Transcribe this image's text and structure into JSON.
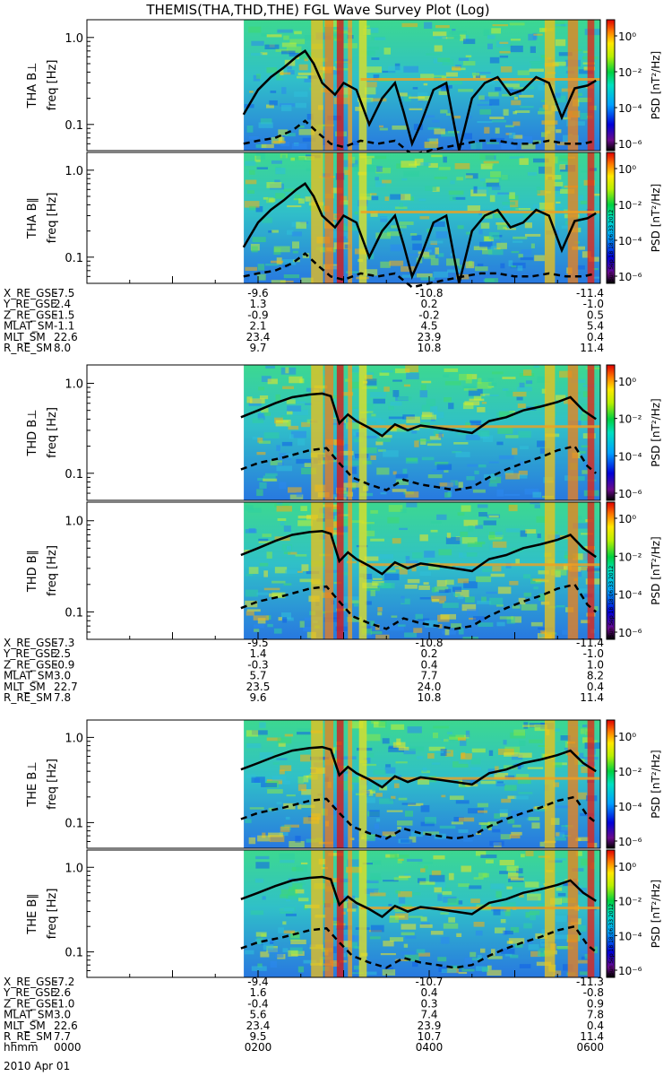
{
  "title": "THEMIS(THA,THD,THE) FGL Wave Survey Plot (Log)",
  "stamp": "Sun Sep 18 18:06:33 2012",
  "date_label": "2010 Apr 01",
  "colorbar": {
    "label": "PSD [nT²/Hz]",
    "ticks": [
      "10⁰",
      "10⁻²",
      "10⁻⁴",
      "10⁻⁶"
    ],
    "tick_values": [
      1,
      0.01,
      0.0001,
      1e-06
    ]
  },
  "freq_ticks": [
    "1.0",
    "0.1"
  ],
  "chart_data": [
    {
      "type": "heatmap",
      "probe": "THA",
      "panel_label": "THA B⊥",
      "ylabel": "freq [Hz]",
      "y_scale": "log",
      "ylim": [
        0.05,
        1.6
      ],
      "xlim": [
        "00:00",
        "06:00"
      ],
      "data_start": "01:50",
      "overlays": [
        {
          "style": "solid",
          "x": [
            1.83,
            1.9,
            2.0,
            2.15,
            2.3,
            2.45,
            2.55,
            2.65,
            2.75,
            2.9,
            3.0,
            3.15,
            3.3,
            3.45,
            3.6,
            3.7,
            3.8,
            3.9,
            4.05,
            4.2,
            4.35,
            4.5,
            4.65,
            4.8,
            4.95,
            5.1,
            5.25,
            5.4,
            5.55,
            5.7,
            5.85,
            5.95
          ],
          "y": [
            0.13,
            0.17,
            0.25,
            0.35,
            0.45,
            0.6,
            0.7,
            0.5,
            0.3,
            0.22,
            0.3,
            0.25,
            0.1,
            0.2,
            0.3,
            0.14,
            0.06,
            0.1,
            0.25,
            0.3,
            0.05,
            0.2,
            0.3,
            0.35,
            0.22,
            0.25,
            0.35,
            0.3,
            0.12,
            0.26,
            0.28,
            0.32
          ]
        },
        {
          "style": "dashed",
          "x": [
            1.83,
            2.0,
            2.2,
            2.4,
            2.55,
            2.7,
            2.85,
            3.0,
            3.2,
            3.4,
            3.6,
            3.8,
            4.0,
            4.2,
            4.4,
            4.6,
            4.8,
            5.0,
            5.2,
            5.4,
            5.6,
            5.8,
            5.95
          ],
          "y": [
            0.06,
            0.065,
            0.07,
            0.085,
            0.11,
            0.08,
            0.06,
            0.055,
            0.065,
            0.06,
            0.065,
            0.045,
            0.05,
            0.055,
            0.06,
            0.065,
            0.065,
            0.06,
            0.06,
            0.065,
            0.06,
            0.06,
            0.065
          ]
        }
      ]
    },
    {
      "type": "heatmap",
      "probe": "THA",
      "panel_label": "THA B∥",
      "ylabel": "freq [Hz]",
      "y_scale": "log",
      "ylim": [
        0.05,
        1.6
      ],
      "xlim": [
        "00:00",
        "06:00"
      ],
      "data_start": "01:50",
      "overlays": [
        {
          "style": "solid",
          "x": [
            1.83,
            1.9,
            2.0,
            2.15,
            2.3,
            2.45,
            2.55,
            2.65,
            2.75,
            2.9,
            3.0,
            3.15,
            3.3,
            3.45,
            3.6,
            3.7,
            3.8,
            3.9,
            4.05,
            4.2,
            4.35,
            4.5,
            4.65,
            4.8,
            4.95,
            5.1,
            5.25,
            5.4,
            5.55,
            5.7,
            5.85,
            5.95
          ],
          "y": [
            0.13,
            0.17,
            0.25,
            0.35,
            0.45,
            0.6,
            0.7,
            0.5,
            0.3,
            0.22,
            0.3,
            0.25,
            0.1,
            0.2,
            0.3,
            0.14,
            0.06,
            0.1,
            0.25,
            0.3,
            0.05,
            0.2,
            0.3,
            0.35,
            0.22,
            0.25,
            0.35,
            0.3,
            0.12,
            0.26,
            0.28,
            0.32
          ]
        },
        {
          "style": "dashed",
          "x": [
            1.83,
            2.0,
            2.2,
            2.4,
            2.55,
            2.7,
            2.85,
            3.0,
            3.2,
            3.4,
            3.6,
            3.8,
            4.0,
            4.2,
            4.4,
            4.6,
            4.8,
            5.0,
            5.2,
            5.4,
            5.6,
            5.8,
            5.95
          ],
          "y": [
            0.06,
            0.065,
            0.07,
            0.085,
            0.11,
            0.08,
            0.06,
            0.055,
            0.065,
            0.06,
            0.065,
            0.045,
            0.05,
            0.055,
            0.06,
            0.065,
            0.065,
            0.06,
            0.06,
            0.065,
            0.06,
            0.06,
            0.065
          ]
        }
      ]
    },
    {
      "type": "heatmap",
      "probe": "THD",
      "panel_label": "THD B⊥",
      "ylabel": "freq [Hz]",
      "y_scale": "log",
      "ylim": [
        0.05,
        1.6
      ],
      "xlim": [
        "00:00",
        "06:00"
      ],
      "data_start": "01:50",
      "overlays": [
        {
          "style": "solid",
          "x": [
            1.8,
            2.0,
            2.2,
            2.4,
            2.6,
            2.75,
            2.85,
            2.95,
            3.05,
            3.15,
            3.3,
            3.45,
            3.6,
            3.75,
            3.9,
            4.1,
            4.3,
            4.5,
            4.7,
            4.9,
            5.1,
            5.3,
            5.5,
            5.65,
            5.8,
            5.95
          ],
          "y": [
            0.42,
            0.5,
            0.6,
            0.7,
            0.75,
            0.77,
            0.72,
            0.36,
            0.45,
            0.38,
            0.32,
            0.26,
            0.35,
            0.3,
            0.34,
            0.32,
            0.3,
            0.28,
            0.38,
            0.42,
            0.5,
            0.55,
            0.62,
            0.7,
            0.5,
            0.4
          ]
        },
        {
          "style": "dashed",
          "x": [
            1.8,
            2.0,
            2.3,
            2.6,
            2.8,
            2.95,
            3.1,
            3.3,
            3.5,
            3.7,
            3.9,
            4.1,
            4.3,
            4.5,
            4.7,
            4.9,
            5.1,
            5.3,
            5.5,
            5.7,
            5.85,
            5.95
          ],
          "y": [
            0.11,
            0.13,
            0.15,
            0.18,
            0.19,
            0.13,
            0.09,
            0.075,
            0.065,
            0.085,
            0.075,
            0.07,
            0.065,
            0.07,
            0.09,
            0.11,
            0.13,
            0.15,
            0.18,
            0.2,
            0.12,
            0.1
          ]
        }
      ]
    },
    {
      "type": "heatmap",
      "probe": "THD",
      "panel_label": "THD B∥",
      "ylabel": "freq [Hz]",
      "y_scale": "log",
      "ylim": [
        0.05,
        1.6
      ],
      "xlim": [
        "00:00",
        "06:00"
      ],
      "data_start": "01:50",
      "overlays": [
        {
          "style": "solid",
          "x": [
            1.8,
            2.0,
            2.2,
            2.4,
            2.6,
            2.75,
            2.85,
            2.95,
            3.05,
            3.15,
            3.3,
            3.45,
            3.6,
            3.75,
            3.9,
            4.1,
            4.3,
            4.5,
            4.7,
            4.9,
            5.1,
            5.3,
            5.5,
            5.65,
            5.8,
            5.95
          ],
          "y": [
            0.42,
            0.5,
            0.6,
            0.7,
            0.75,
            0.77,
            0.72,
            0.36,
            0.45,
            0.38,
            0.32,
            0.26,
            0.35,
            0.3,
            0.34,
            0.32,
            0.3,
            0.28,
            0.38,
            0.42,
            0.5,
            0.55,
            0.62,
            0.7,
            0.5,
            0.4
          ]
        },
        {
          "style": "dashed",
          "x": [
            1.8,
            2.0,
            2.3,
            2.6,
            2.8,
            2.95,
            3.1,
            3.3,
            3.5,
            3.7,
            3.9,
            4.1,
            4.3,
            4.5,
            4.7,
            4.9,
            5.1,
            5.3,
            5.5,
            5.7,
            5.85,
            5.95
          ],
          "y": [
            0.11,
            0.13,
            0.15,
            0.18,
            0.19,
            0.13,
            0.09,
            0.075,
            0.065,
            0.085,
            0.075,
            0.07,
            0.065,
            0.07,
            0.09,
            0.11,
            0.13,
            0.15,
            0.18,
            0.2,
            0.12,
            0.1
          ]
        }
      ]
    },
    {
      "type": "heatmap",
      "probe": "THE",
      "panel_label": "THE B⊥",
      "ylabel": "freq [Hz]",
      "y_scale": "log",
      "ylim": [
        0.05,
        1.6
      ],
      "xlim": [
        "00:00",
        "06:00"
      ],
      "data_start": "01:50",
      "overlays": [
        {
          "style": "solid",
          "x": [
            1.8,
            2.0,
            2.2,
            2.4,
            2.6,
            2.75,
            2.85,
            2.95,
            3.05,
            3.15,
            3.3,
            3.45,
            3.6,
            3.75,
            3.9,
            4.1,
            4.3,
            4.5,
            4.7,
            4.9,
            5.1,
            5.3,
            5.5,
            5.65,
            5.8,
            5.95
          ],
          "y": [
            0.42,
            0.5,
            0.6,
            0.7,
            0.75,
            0.77,
            0.72,
            0.36,
            0.45,
            0.38,
            0.32,
            0.26,
            0.35,
            0.3,
            0.34,
            0.32,
            0.3,
            0.28,
            0.38,
            0.42,
            0.5,
            0.55,
            0.62,
            0.7,
            0.5,
            0.4
          ]
        },
        {
          "style": "dashed",
          "x": [
            1.8,
            2.0,
            2.3,
            2.6,
            2.8,
            2.95,
            3.1,
            3.3,
            3.5,
            3.7,
            3.9,
            4.1,
            4.3,
            4.5,
            4.7,
            4.9,
            5.1,
            5.3,
            5.5,
            5.7,
            5.85,
            5.95
          ],
          "y": [
            0.11,
            0.13,
            0.15,
            0.18,
            0.19,
            0.13,
            0.09,
            0.075,
            0.065,
            0.085,
            0.075,
            0.07,
            0.065,
            0.07,
            0.09,
            0.11,
            0.13,
            0.15,
            0.18,
            0.2,
            0.12,
            0.1
          ]
        }
      ]
    },
    {
      "type": "heatmap",
      "probe": "THE",
      "panel_label": "THE B∥",
      "ylabel": "freq [Hz]",
      "y_scale": "log",
      "ylim": [
        0.05,
        1.6
      ],
      "xlim": [
        "00:00",
        "06:00"
      ],
      "data_start": "01:50",
      "overlays": [
        {
          "style": "solid",
          "x": [
            1.8,
            2.0,
            2.2,
            2.4,
            2.6,
            2.75,
            2.85,
            2.95,
            3.05,
            3.15,
            3.3,
            3.45,
            3.6,
            3.75,
            3.9,
            4.1,
            4.3,
            4.5,
            4.7,
            4.9,
            5.1,
            5.3,
            5.5,
            5.65,
            5.8,
            5.95
          ],
          "y": [
            0.42,
            0.5,
            0.6,
            0.7,
            0.75,
            0.77,
            0.72,
            0.36,
            0.45,
            0.38,
            0.32,
            0.26,
            0.35,
            0.3,
            0.34,
            0.32,
            0.3,
            0.28,
            0.38,
            0.42,
            0.5,
            0.55,
            0.62,
            0.7,
            0.5,
            0.4
          ]
        },
        {
          "style": "dashed",
          "x": [
            1.8,
            2.0,
            2.3,
            2.6,
            2.8,
            2.95,
            3.1,
            3.3,
            3.5,
            3.7,
            3.9,
            4.1,
            4.3,
            4.5,
            4.7,
            4.9,
            5.1,
            5.3,
            5.5,
            5.7,
            5.85,
            5.95
          ],
          "y": [
            0.11,
            0.13,
            0.15,
            0.18,
            0.19,
            0.13,
            0.09,
            0.075,
            0.065,
            0.085,
            0.075,
            0.07,
            0.065,
            0.07,
            0.09,
            0.11,
            0.13,
            0.15,
            0.18,
            0.2,
            0.12,
            0.1
          ]
        }
      ]
    }
  ],
  "ephemeris": [
    {
      "probe": "THA",
      "rows": [
        {
          "label": "X_RE_GSE",
          "values": [
            "-7.5",
            "-9.6",
            "-10.8",
            "-11.4"
          ]
        },
        {
          "label": "Y_RE_GSE",
          "values": [
            "2.4",
            "1.3",
            "0.2",
            "-1.0"
          ]
        },
        {
          "label": "Z_RE_GSE",
          "values": [
            "-1.5",
            "-0.9",
            "-0.2",
            "0.5"
          ]
        },
        {
          "label": "MLAT_SM",
          "values": [
            "-1.1",
            "2.1",
            "4.5",
            "5.4"
          ]
        },
        {
          "label": "MLT_SM",
          "values": [
            "22.6",
            "23.4",
            "23.9",
            "0.4"
          ]
        },
        {
          "label": "R_RE_SM",
          "values": [
            "8.0",
            "9.7",
            "10.8",
            "11.4"
          ]
        }
      ]
    },
    {
      "probe": "THD",
      "rows": [
        {
          "label": "X_RE_GSE",
          "values": [
            "-7.3",
            "-9.5",
            "-10.8",
            "-11.4"
          ]
        },
        {
          "label": "Y_RE_GSE",
          "values": [
            "2.5",
            "1.4",
            "0.2",
            "-1.0"
          ]
        },
        {
          "label": "Z_RE_GSE",
          "values": [
            "-0.9",
            "-0.3",
            "0.4",
            "1.0"
          ]
        },
        {
          "label": "MLAT_SM",
          "values": [
            "3.0",
            "5.7",
            "7.7",
            "8.2"
          ]
        },
        {
          "label": "MLT_SM",
          "values": [
            "22.7",
            "23.5",
            "24.0",
            "0.4"
          ]
        },
        {
          "label": "R_RE_SM",
          "values": [
            "7.8",
            "9.6",
            "10.8",
            "11.4"
          ]
        }
      ]
    },
    {
      "probe": "THE",
      "rows": [
        {
          "label": "X_RE_GSE",
          "values": [
            "-7.2",
            "-9.4",
            "-10.7",
            "-11.3"
          ]
        },
        {
          "label": "Y_RE_GSE",
          "values": [
            "2.6",
            "1.6",
            "0.4",
            "-0.8"
          ]
        },
        {
          "label": "Z_RE_GSE",
          "values": [
            "-1.0",
            "-0.4",
            "0.3",
            "0.9"
          ]
        },
        {
          "label": "MLAT_SM",
          "values": [
            "3.0",
            "5.6",
            "7.4",
            "7.8"
          ]
        },
        {
          "label": "MLT_SM",
          "values": [
            "22.6",
            "23.4",
            "23.9",
            "0.4"
          ]
        },
        {
          "label": "R_RE_SM",
          "values": [
            "7.7",
            "9.5",
            "10.7",
            "11.4"
          ]
        },
        {
          "label": "hhmm",
          "values": [
            "0000",
            "0200",
            "0400",
            "0600"
          ]
        }
      ]
    }
  ]
}
